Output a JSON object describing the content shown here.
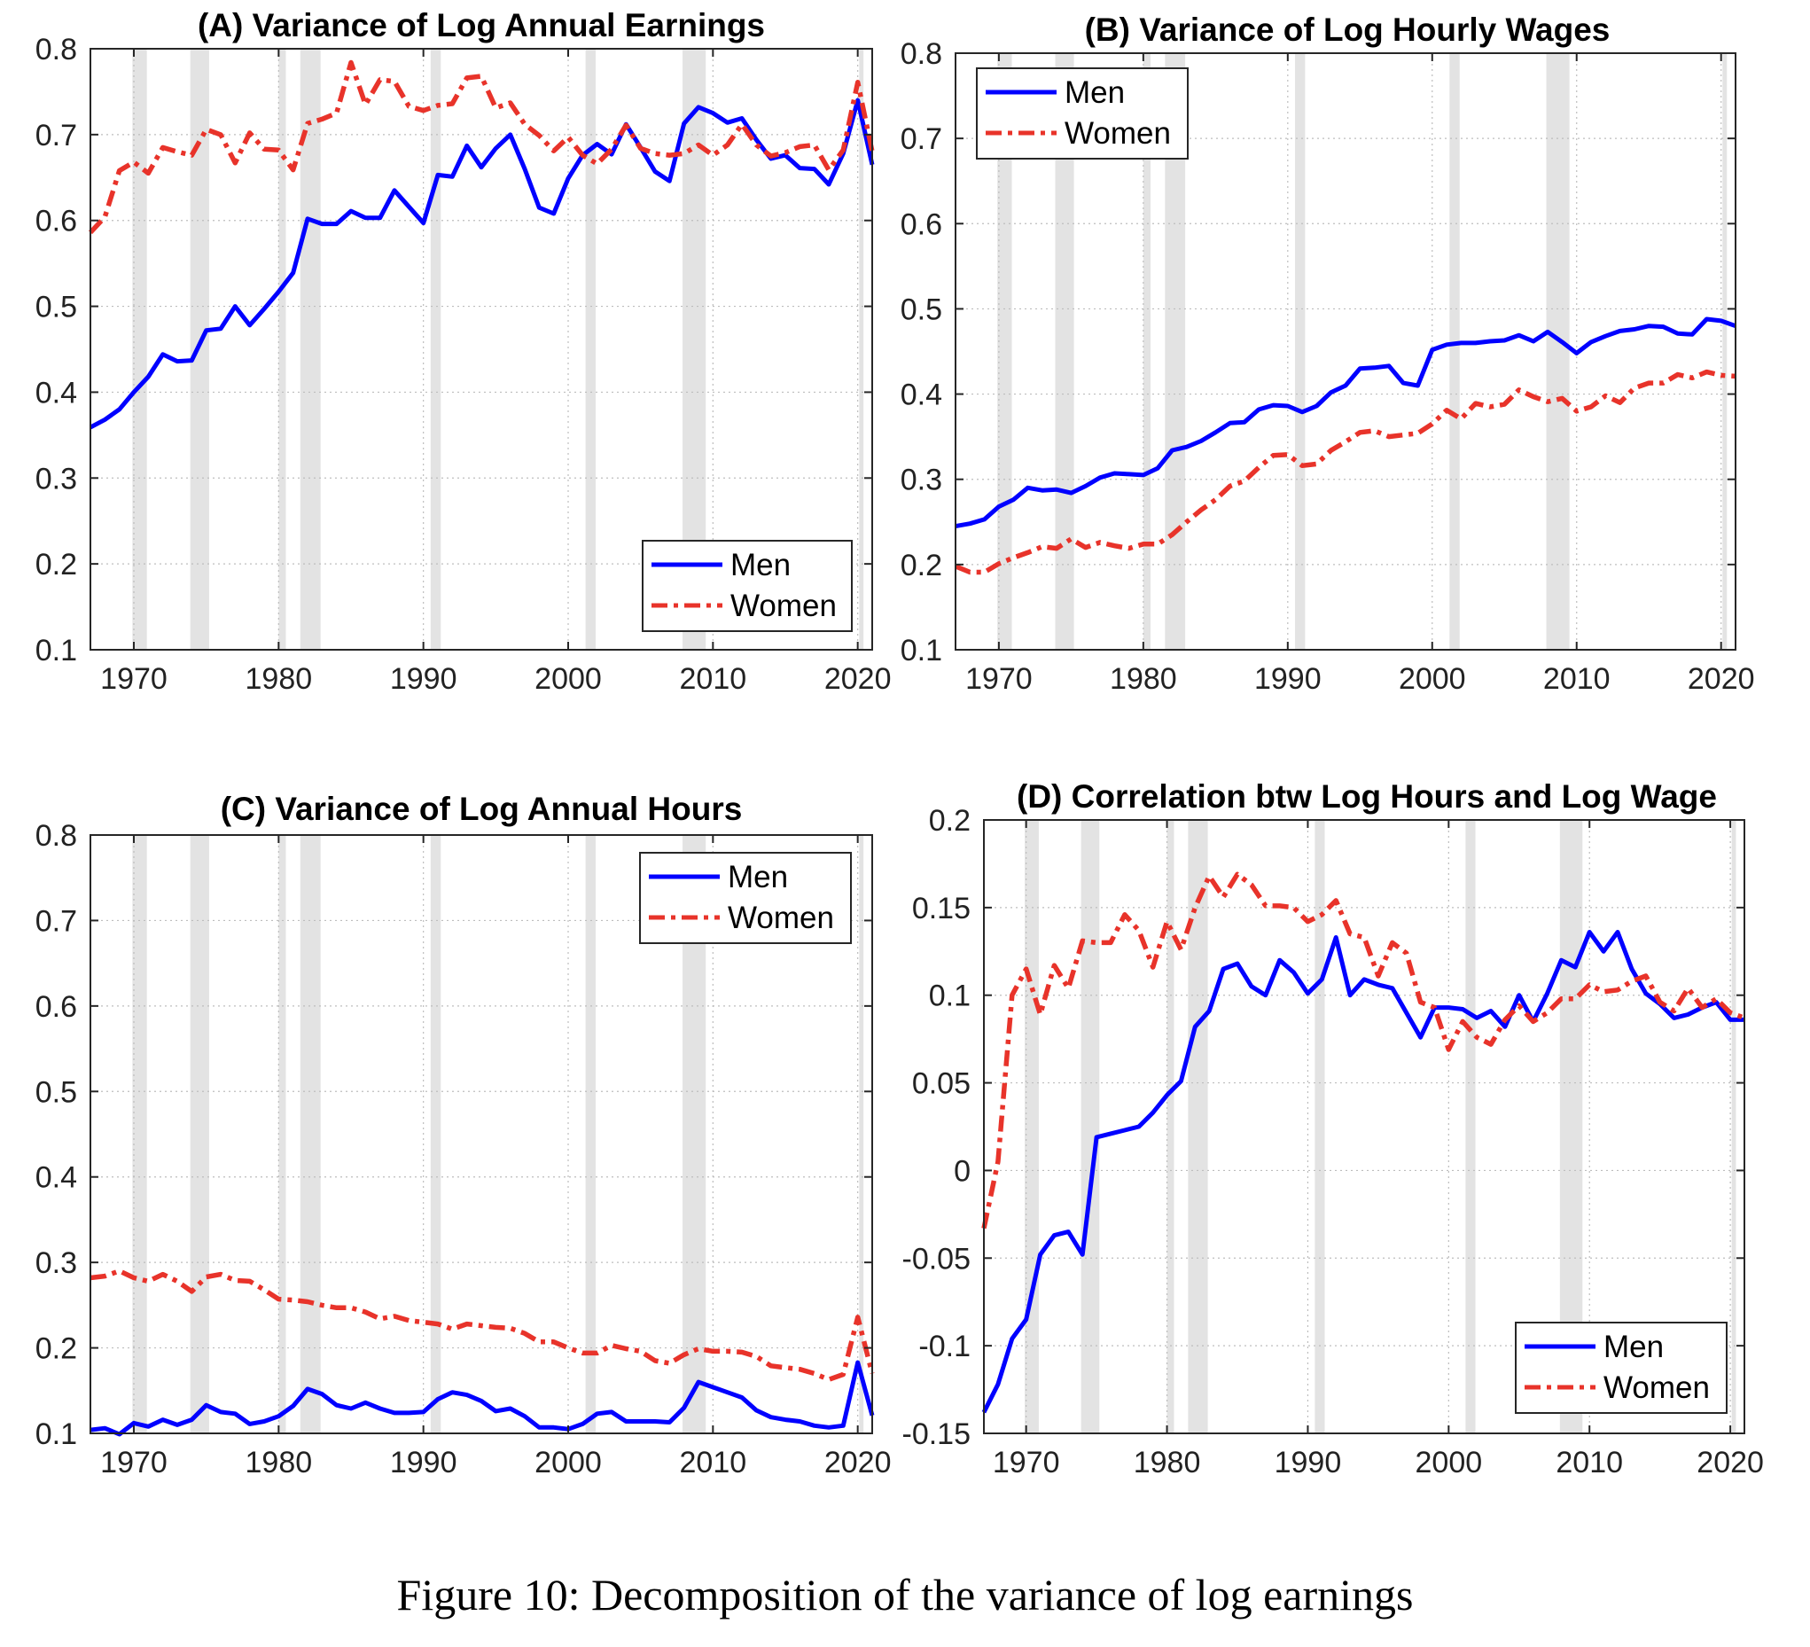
{
  "caption": "Figure 10: Decomposition of the variance of log earnings",
  "colors": {
    "men": "#0000ff",
    "women": "#e8332a",
    "recession": "#e3e3e3",
    "grid": "#bdbdbd"
  },
  "recessions": [
    [
      1969.9,
      1970.9
    ],
    [
      1973.9,
      1975.2
    ],
    [
      1980.0,
      1980.5
    ],
    [
      1981.5,
      1982.9
    ],
    [
      1990.5,
      1991.2
    ],
    [
      2001.2,
      2001.9
    ],
    [
      2007.9,
      2009.5
    ],
    [
      2020.1,
      2020.4
    ]
  ],
  "chart_data": [
    {
      "type": "line",
      "title": "(A) Variance of Log Annual Earnings",
      "xlim": [
        1967,
        2021
      ],
      "ylim": [
        0.1,
        0.8
      ],
      "xticks": [
        "1970",
        "1980",
        "1990",
        "2000",
        "2010",
        "2020"
      ],
      "yticks": [
        "0.1",
        "0.2",
        "0.3",
        "0.4",
        "0.5",
        "0.6",
        "0.7",
        "0.8"
      ],
      "grid": true,
      "legend": {
        "position": "bottom-right",
        "entries": [
          "Men",
          "Women"
        ]
      },
      "x": [
        1967,
        1968,
        1969,
        1970,
        1971,
        1972,
        1973,
        1974,
        1975,
        1976,
        1977,
        1978,
        1979,
        1980,
        1981,
        1982,
        1983,
        1984,
        1985,
        1986,
        1987,
        1988,
        1989,
        1990,
        1991,
        1992,
        1993,
        1994,
        1995,
        1996,
        1997,
        1998,
        1999,
        2000,
        2001,
        2002,
        2003,
        2004,
        2005,
        2006,
        2007,
        2008,
        2009,
        2010,
        2011,
        2012,
        2013,
        2014,
        2015,
        2016,
        2017,
        2018,
        2019,
        2020,
        2021
      ],
      "series": [
        {
          "name": "Men",
          "style": "solid",
          "values": [
            0.359,
            0.368,
            0.38,
            0.4,
            0.418,
            0.444,
            0.436,
            0.437,
            0.472,
            0.474,
            0.5,
            0.478,
            0.497,
            0.517,
            0.539,
            0.602,
            0.596,
            0.596,
            0.611,
            0.603,
            0.603,
            0.635,
            0.616,
            0.597,
            0.653,
            0.651,
            0.687,
            0.662,
            0.684,
            0.7,
            0.66,
            0.615,
            0.608,
            0.649,
            0.676,
            0.689,
            0.677,
            0.712,
            0.685,
            0.657,
            0.646,
            0.713,
            0.732,
            0.725,
            0.714,
            0.719,
            0.694,
            0.672,
            0.676,
            0.661,
            0.66,
            0.642,
            0.678,
            0.74,
            0.665
          ]
        },
        {
          "name": "Women",
          "style": "dash-dot",
          "values": [
            0.586,
            0.604,
            0.658,
            0.668,
            0.655,
            0.685,
            0.68,
            0.676,
            0.706,
            0.7,
            0.667,
            0.702,
            0.683,
            0.682,
            0.659,
            0.713,
            0.718,
            0.725,
            0.784,
            0.735,
            0.764,
            0.762,
            0.733,
            0.728,
            0.734,
            0.736,
            0.766,
            0.768,
            0.731,
            0.737,
            0.712,
            0.699,
            0.681,
            0.697,
            0.676,
            0.666,
            0.683,
            0.711,
            0.684,
            0.678,
            0.676,
            0.678,
            0.688,
            0.676,
            0.688,
            0.712,
            0.688,
            0.675,
            0.679,
            0.686,
            0.688,
            0.659,
            0.682,
            0.761,
            0.68
          ]
        }
      ]
    },
    {
      "type": "line",
      "title": "(B) Variance of Log Hourly Wages",
      "xlim": [
        1967,
        2021
      ],
      "ylim": [
        0.1,
        0.8
      ],
      "xticks": [
        "1970",
        "1980",
        "1990",
        "2000",
        "2010",
        "2020"
      ],
      "yticks": [
        "0.1",
        "0.2",
        "0.3",
        "0.4",
        "0.5",
        "0.6",
        "0.7",
        "0.8"
      ],
      "grid": true,
      "legend": {
        "position": "top-left",
        "entries": [
          "Men",
          "Women"
        ]
      },
      "x": [
        1967,
        1968,
        1969,
        1970,
        1971,
        1972,
        1973,
        1974,
        1975,
        1976,
        1977,
        1978,
        1979,
        1980,
        1981,
        1982,
        1983,
        1984,
        1985,
        1986,
        1987,
        1988,
        1989,
        1990,
        1991,
        1992,
        1993,
        1994,
        1995,
        1996,
        1997,
        1998,
        1999,
        2000,
        2001,
        2002,
        2003,
        2004,
        2005,
        2006,
        2007,
        2008,
        2009,
        2010,
        2011,
        2012,
        2013,
        2014,
        2015,
        2016,
        2017,
        2018,
        2019,
        2020,
        2021
      ],
      "series": [
        {
          "name": "Men",
          "style": "solid",
          "values": [
            0.245,
            0.248,
            0.253,
            0.268,
            0.276,
            0.29,
            0.287,
            0.288,
            0.284,
            0.292,
            0.302,
            0.307,
            0.306,
            0.305,
            0.313,
            0.334,
            0.338,
            0.345,
            0.355,
            0.366,
            0.367,
            0.382,
            0.387,
            0.386,
            0.379,
            0.386,
            0.402,
            0.41,
            0.43,
            0.431,
            0.433,
            0.413,
            0.41,
            0.452,
            0.458,
            0.46,
            0.46,
            0.462,
            0.463,
            0.469,
            0.462,
            0.473,
            0.461,
            0.448,
            0.461,
            0.468,
            0.474,
            0.476,
            0.48,
            0.479,
            0.471,
            0.47,
            0.488,
            0.486,
            0.48
          ]
        },
        {
          "name": "Women",
          "style": "dash-dot",
          "values": [
            0.198,
            0.191,
            0.191,
            0.201,
            0.208,
            0.214,
            0.221,
            0.219,
            0.23,
            0.22,
            0.226,
            0.222,
            0.219,
            0.224,
            0.224,
            0.235,
            0.25,
            0.264,
            0.276,
            0.292,
            0.298,
            0.314,
            0.328,
            0.329,
            0.316,
            0.318,
            0.334,
            0.344,
            0.355,
            0.357,
            0.35,
            0.352,
            0.354,
            0.365,
            0.381,
            0.371,
            0.389,
            0.385,
            0.388,
            0.405,
            0.397,
            0.391,
            0.395,
            0.38,
            0.385,
            0.398,
            0.39,
            0.407,
            0.413,
            0.413,
            0.423,
            0.419,
            0.426,
            0.422,
            0.421
          ]
        }
      ]
    },
    {
      "type": "line",
      "title": "(C) Variance of Log Annual Hours",
      "xlim": [
        1967,
        2021
      ],
      "ylim": [
        0.1,
        0.8
      ],
      "xticks": [
        "1970",
        "1980",
        "1990",
        "2000",
        "2010",
        "2020"
      ],
      "yticks": [
        "0.1",
        "0.2",
        "0.3",
        "0.4",
        "0.5",
        "0.6",
        "0.7",
        "0.8"
      ],
      "grid": true,
      "legend": {
        "position": "top-right",
        "entries": [
          "Men",
          "Women"
        ]
      },
      "x": [
        1967,
        1968,
        1969,
        1970,
        1971,
        1972,
        1973,
        1974,
        1975,
        1976,
        1977,
        1978,
        1979,
        1980,
        1981,
        1982,
        1983,
        1984,
        1985,
        1986,
        1987,
        1988,
        1989,
        1990,
        1991,
        1992,
        1993,
        1994,
        1995,
        1996,
        1997,
        1998,
        1999,
        2000,
        2001,
        2002,
        2003,
        2004,
        2005,
        2006,
        2007,
        2008,
        2009,
        2010,
        2011,
        2012,
        2013,
        2014,
        2015,
        2016,
        2017,
        2018,
        2019,
        2020,
        2021
      ],
      "series": [
        {
          "name": "Men",
          "style": "solid",
          "values": [
            0.104,
            0.106,
            0.099,
            0.112,
            0.108,
            0.116,
            0.11,
            0.116,
            0.133,
            0.125,
            0.123,
            0.111,
            0.114,
            0.12,
            0.132,
            0.152,
            0.146,
            0.133,
            0.129,
            0.136,
            0.129,
            0.124,
            0.124,
            0.125,
            0.14,
            0.148,
            0.145,
            0.138,
            0.126,
            0.129,
            0.12,
            0.107,
            0.107,
            0.105,
            0.111,
            0.123,
            0.125,
            0.114,
            0.114,
            0.114,
            0.113,
            0.13,
            0.16,
            0.154,
            0.148,
            0.142,
            0.127,
            0.119,
            0.116,
            0.114,
            0.109,
            0.107,
            0.109,
            0.183,
            0.121
          ]
        },
        {
          "name": "Women",
          "style": "dash-dot",
          "values": [
            0.282,
            0.284,
            0.29,
            0.282,
            0.278,
            0.286,
            0.278,
            0.266,
            0.283,
            0.286,
            0.279,
            0.278,
            0.268,
            0.257,
            0.256,
            0.254,
            0.25,
            0.247,
            0.247,
            0.242,
            0.234,
            0.237,
            0.232,
            0.23,
            0.228,
            0.222,
            0.228,
            0.226,
            0.224,
            0.223,
            0.217,
            0.207,
            0.207,
            0.2,
            0.194,
            0.194,
            0.203,
            0.199,
            0.196,
            0.185,
            0.182,
            0.192,
            0.199,
            0.196,
            0.196,
            0.195,
            0.19,
            0.179,
            0.177,
            0.175,
            0.17,
            0.163,
            0.169,
            0.236,
            0.17
          ]
        }
      ]
    },
    {
      "type": "line",
      "title": "(D) Correlation btw Log Hours and Log Wage",
      "xlim": [
        1967,
        2021
      ],
      "ylim": [
        -0.15,
        0.2
      ],
      "xticks": [
        "1970",
        "1980",
        "1990",
        "2000",
        "2010",
        "2020"
      ],
      "yticks": [
        "-0.15",
        "-0.1",
        "-0.05",
        "0",
        "0.05",
        "0.1",
        "0.15",
        "0.2"
      ],
      "grid": true,
      "legend": {
        "position": "bottom-right",
        "entries": [
          "Men",
          "Women"
        ]
      },
      "x": [
        1967,
        1968,
        1969,
        1970,
        1971,
        1972,
        1973,
        1974,
        1975,
        1976,
        1977,
        1978,
        1979,
        1980,
        1981,
        1982,
        1983,
        1984,
        1985,
        1986,
        1987,
        1988,
        1989,
        1990,
        1991,
        1992,
        1993,
        1994,
        1995,
        1996,
        1997,
        1998,
        1999,
        2000,
        2001,
        2002,
        2003,
        2004,
        2005,
        2006,
        2007,
        2008,
        2009,
        2010,
        2011,
        2012,
        2013,
        2014,
        2015,
        2016,
        2017,
        2018,
        2019,
        2020,
        2021
      ],
      "series": [
        {
          "name": "Men",
          "style": "solid",
          "values": [
            -0.138,
            -0.122,
            -0.096,
            -0.085,
            -0.048,
            -0.037,
            -0.035,
            -0.048,
            0.019,
            0.021,
            0.023,
            0.025,
            0.033,
            0.043,
            0.051,
            0.082,
            0.091,
            0.115,
            0.118,
            0.105,
            0.1,
            0.12,
            0.113,
            0.101,
            0.109,
            0.133,
            0.1,
            0.109,
            0.106,
            0.104,
            0.09,
            0.076,
            0.093,
            0.093,
            0.092,
            0.087,
            0.091,
            0.082,
            0.1,
            0.085,
            0.101,
            0.12,
            0.116,
            0.136,
            0.125,
            0.136,
            0.115,
            0.101,
            0.095,
            0.087,
            0.089,
            0.093,
            0.096,
            0.086,
            0.086
          ]
        },
        {
          "name": "Women",
          "style": "dash-dot",
          "values": [
            -0.033,
            0.005,
            0.1,
            0.115,
            0.089,
            0.117,
            0.104,
            0.131,
            0.13,
            0.13,
            0.146,
            0.137,
            0.116,
            0.142,
            0.126,
            0.15,
            0.168,
            0.156,
            0.169,
            0.163,
            0.151,
            0.151,
            0.15,
            0.142,
            0.146,
            0.154,
            0.135,
            0.133,
            0.111,
            0.13,
            0.124,
            0.096,
            0.093,
            0.069,
            0.085,
            0.076,
            0.072,
            0.086,
            0.094,
            0.085,
            0.09,
            0.098,
            0.098,
            0.106,
            0.102,
            0.103,
            0.108,
            0.111,
            0.096,
            0.091,
            0.104,
            0.093,
            0.098,
            0.09,
            0.087
          ]
        }
      ]
    }
  ]
}
